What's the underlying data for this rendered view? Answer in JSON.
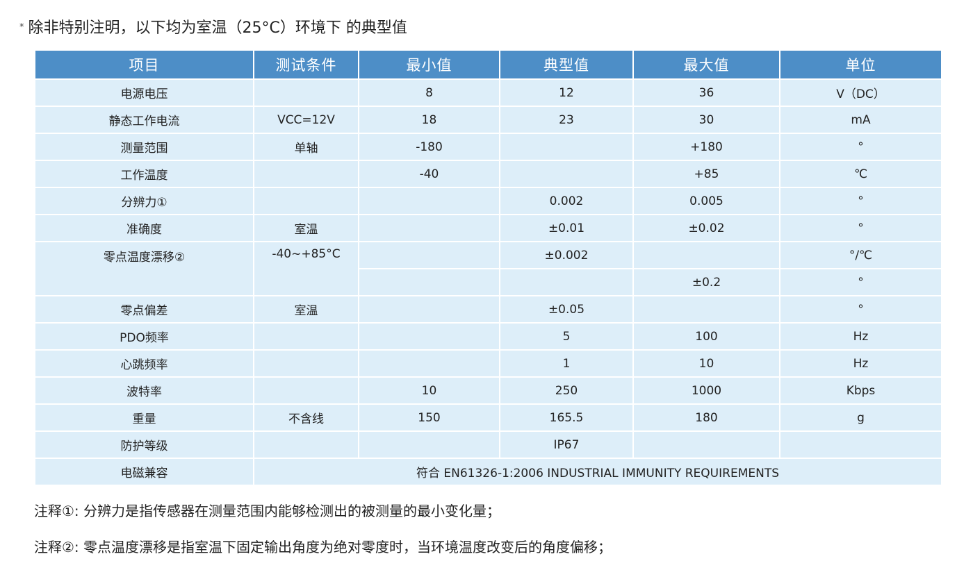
{
  "header": {
    "marker": "*",
    "text": "除非特别注明，以下均为室温（25°C）环境下 的典型值"
  },
  "table": {
    "columns": [
      "项目",
      "测试条件",
      "最小值",
      "典型值",
      "最大值",
      "单位"
    ],
    "rows": [
      {
        "item": "电源电压",
        "condition": "",
        "min": "8",
        "typ": "12",
        "max": "36",
        "unit": "V（DC）"
      },
      {
        "item": "静态工作电流",
        "condition": "VCC=12V",
        "min": "18",
        "typ": "23",
        "max": "30",
        "unit": "mA"
      },
      {
        "item": "测量范围",
        "condition": "单轴",
        "min": "-180",
        "typ": "",
        "max": "+180",
        "unit": "°"
      },
      {
        "item": "工作温度",
        "condition": "",
        "min": "-40",
        "typ": "",
        "max": "+85",
        "unit": "℃"
      },
      {
        "item": "分辨力①",
        "condition": "",
        "min": "",
        "typ": "0.002",
        "max": "0.005",
        "unit": "°"
      },
      {
        "item": "准确度",
        "condition": "室温",
        "min": "",
        "typ": "±0.01",
        "max": "±0.02",
        "unit": "°"
      }
    ],
    "drift": {
      "item": "零点温度漂移②",
      "condition": "-40~+85°C",
      "row1": {
        "min": "",
        "typ": "±0.002",
        "max": "",
        "unit": "°/℃"
      },
      "row2": {
        "min": "",
        "typ": "",
        "max": "±0.2",
        "unit": "°"
      }
    },
    "rows2": [
      {
        "item": "零点偏差",
        "condition": "室温",
        "min": "",
        "typ": "±0.05",
        "max": "",
        "unit": "°"
      },
      {
        "item": "PDO频率",
        "condition": "",
        "min": "",
        "typ": "5",
        "max": "100",
        "unit": "Hz"
      },
      {
        "item": "心跳频率",
        "condition": "",
        "min": "",
        "typ": "1",
        "max": "10",
        "unit": "Hz"
      },
      {
        "item": "波特率",
        "condition": "",
        "min": "10",
        "typ": "250",
        "max": "1000",
        "unit": "Kbps"
      },
      {
        "item": "重量",
        "condition": "不含线",
        "min": "150",
        "typ": "165.5",
        "max": "180",
        "unit": "g"
      },
      {
        "item": "防护等级",
        "condition": "",
        "min": "",
        "typ": "IP67",
        "max": "",
        "unit": ""
      }
    ],
    "emc": {
      "item": "电磁兼容",
      "value": "符合 EN61326-1:2006 INDUSTRIAL IMMUNITY REQUIREMENTS"
    }
  },
  "notes": [
    "注释①:  分辨力是指传感器在测量范围内能够检测出的被测量的最小变化量；",
    "注释②: 零点温度漂移是指室温下固定输出角度为绝对零度时，当环境温度改变后的角度偏移；"
  ]
}
